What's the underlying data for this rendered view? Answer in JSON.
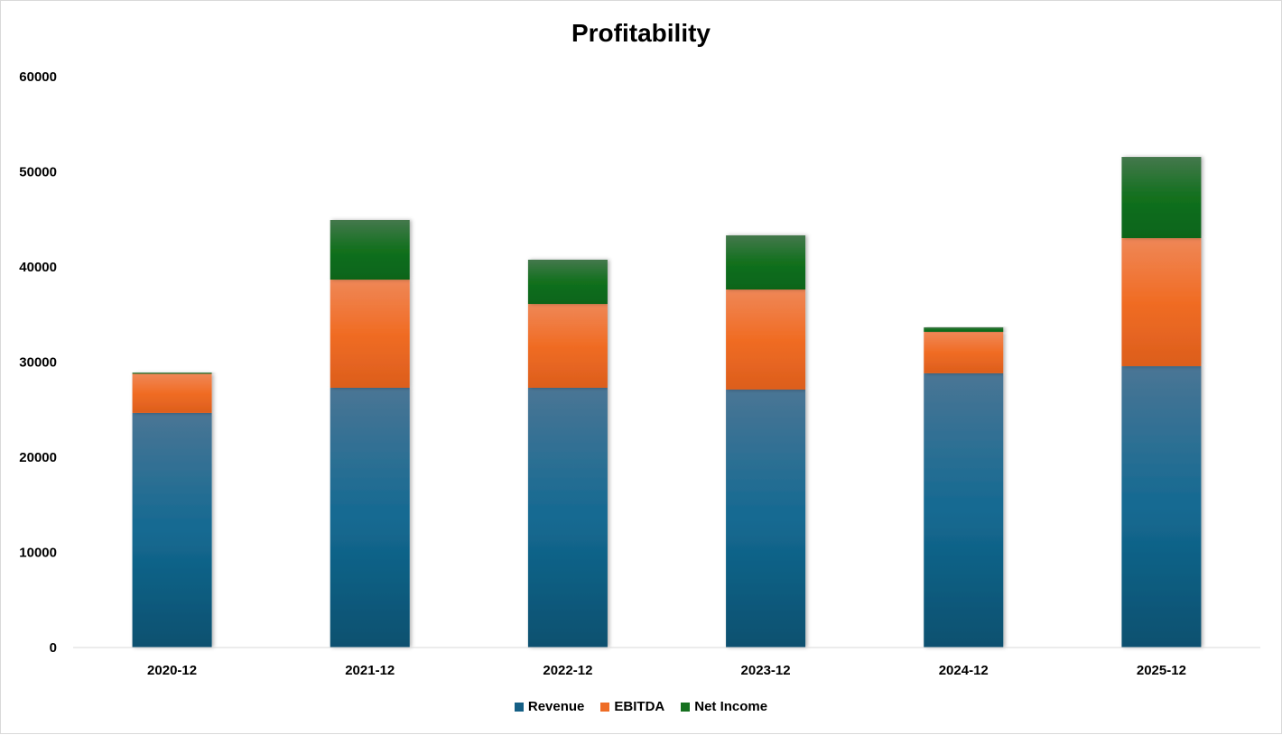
{
  "chart_data": {
    "type": "bar",
    "stacked": true,
    "title": "Profitability",
    "xlabel": "",
    "ylabel": "",
    "ylim": [
      0,
      60000
    ],
    "yticks": [
      "0",
      "10000",
      "20000",
      "30000",
      "40000",
      "50000",
      "60000"
    ],
    "categories": [
      "2020-12",
      "2021-12",
      "2022-12",
      "2023-12",
      "2024-12",
      "2025-12"
    ],
    "series": [
      {
        "name": "Revenue",
        "color": "#155f85",
        "values": [
          24650,
          27300,
          27300,
          27110,
          28820,
          29570
        ]
      },
      {
        "name": "EBITDA",
        "color": "#ee6c25",
        "values": [
          4120,
          11370,
          8810,
          10520,
          4360,
          13460
        ]
      },
      {
        "name": "Net Income",
        "color": "#16701f",
        "values": [
          120,
          6260,
          4650,
          5690,
          470,
          8530
        ]
      }
    ],
    "legend": "bottom",
    "grid": false
  }
}
